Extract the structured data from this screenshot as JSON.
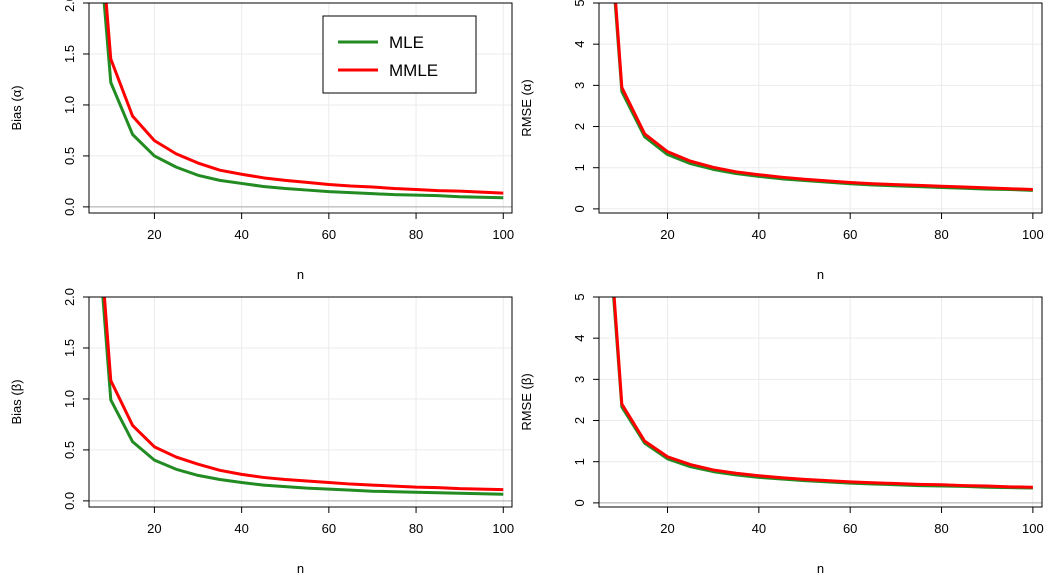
{
  "colors": {
    "MLE": "#228B22",
    "MMLE": "#FF0000",
    "grid": "#EBEBEB",
    "refline": "#AAAAAA",
    "frame": "#000000"
  },
  "legend": {
    "placement": "top-right",
    "entries": [
      "MLE",
      "MMLE"
    ]
  },
  "chart_data": [
    {
      "type": "line",
      "xlabel": "n",
      "ylabel": "Bias (α)",
      "xlim": [
        5,
        102
      ],
      "ylim": [
        -0.06,
        2.0
      ],
      "xticks": [
        20,
        40,
        60,
        80,
        100
      ],
      "yticks": [
        0.0,
        0.5,
        1.0,
        1.5,
        2.0
      ],
      "ytick_labels": [
        "0.0",
        "0.5",
        "1.0",
        "1.5",
        "2.0"
      ],
      "refline_y": 0,
      "grid": true,
      "legend": true,
      "x": [
        8,
        10,
        15,
        20,
        25,
        30,
        35,
        40,
        45,
        50,
        55,
        60,
        65,
        70,
        75,
        80,
        85,
        90,
        95,
        100
      ],
      "series": [
        {
          "name": "MLE",
          "values": [
            2.25,
            1.22,
            0.71,
            0.5,
            0.39,
            0.31,
            0.26,
            0.23,
            0.2,
            0.18,
            0.165,
            0.15,
            0.14,
            0.13,
            0.12,
            0.115,
            0.11,
            0.1,
            0.095,
            0.09
          ]
        },
        {
          "name": "MMLE",
          "values": [
            2.5,
            1.45,
            0.89,
            0.65,
            0.52,
            0.43,
            0.36,
            0.32,
            0.285,
            0.26,
            0.24,
            0.22,
            0.205,
            0.195,
            0.18,
            0.17,
            0.16,
            0.155,
            0.145,
            0.135
          ]
        }
      ]
    },
    {
      "type": "line",
      "xlabel": "n",
      "ylabel": "RMSE (α)",
      "xlim": [
        5,
        102
      ],
      "ylim": [
        -0.1,
        5.0
      ],
      "xticks": [
        20,
        40,
        60,
        80,
        100
      ],
      "yticks": [
        0,
        1,
        2,
        3,
        4,
        5
      ],
      "ytick_labels": [
        "0",
        "1",
        "2",
        "3",
        "4",
        "5"
      ],
      "refline_y": null,
      "grid": true,
      "legend": false,
      "x": [
        8,
        10,
        15,
        20,
        25,
        30,
        35,
        40,
        45,
        50,
        55,
        60,
        65,
        70,
        75,
        80,
        85,
        90,
        95,
        100
      ],
      "series": [
        {
          "name": "MLE",
          "values": [
            5.8,
            2.85,
            1.75,
            1.32,
            1.1,
            0.96,
            0.86,
            0.79,
            0.73,
            0.69,
            0.65,
            0.61,
            0.58,
            0.56,
            0.54,
            0.52,
            0.5,
            0.48,
            0.47,
            0.45
          ]
        },
        {
          "name": "MMLE",
          "values": [
            6.0,
            2.95,
            1.82,
            1.39,
            1.16,
            1.01,
            0.9,
            0.83,
            0.77,
            0.72,
            0.68,
            0.64,
            0.61,
            0.59,
            0.57,
            0.55,
            0.53,
            0.51,
            0.49,
            0.47
          ]
        }
      ]
    },
    {
      "type": "line",
      "xlabel": "n",
      "ylabel": "Bias (β)",
      "xlim": [
        5,
        102
      ],
      "ylim": [
        -0.06,
        2.0
      ],
      "xticks": [
        20,
        40,
        60,
        80,
        100
      ],
      "yticks": [
        0.0,
        0.5,
        1.0,
        1.5,
        2.0
      ],
      "ytick_labels": [
        "0.0",
        "0.5",
        "1.0",
        "1.5",
        "2.0"
      ],
      "refline_y": 0,
      "grid": true,
      "legend": false,
      "x": [
        8,
        10,
        15,
        20,
        25,
        30,
        35,
        40,
        45,
        50,
        55,
        60,
        65,
        70,
        75,
        80,
        85,
        90,
        95,
        100
      ],
      "series": [
        {
          "name": "MLE",
          "values": [
            2.1,
            0.99,
            0.58,
            0.4,
            0.31,
            0.25,
            0.21,
            0.18,
            0.155,
            0.14,
            0.125,
            0.115,
            0.105,
            0.095,
            0.09,
            0.085,
            0.08,
            0.075,
            0.07,
            0.065
          ]
        },
        {
          "name": "MMLE",
          "values": [
            2.3,
            1.18,
            0.74,
            0.53,
            0.43,
            0.36,
            0.3,
            0.26,
            0.23,
            0.21,
            0.195,
            0.18,
            0.165,
            0.155,
            0.145,
            0.135,
            0.13,
            0.12,
            0.115,
            0.11
          ]
        }
      ]
    },
    {
      "type": "line",
      "xlabel": "n",
      "ylabel": "RMSE (β)",
      "xlim": [
        5,
        102
      ],
      "ylim": [
        -0.1,
        5.0
      ],
      "xticks": [
        20,
        40,
        60,
        80,
        100
      ],
      "yticks": [
        0,
        1,
        2,
        3,
        4,
        5
      ],
      "ytick_labels": [
        "0",
        "1",
        "2",
        "3",
        "4",
        "5"
      ],
      "refline_y": 0,
      "grid": true,
      "legend": false,
      "x": [
        8,
        10,
        15,
        20,
        25,
        30,
        35,
        40,
        45,
        50,
        55,
        60,
        65,
        70,
        75,
        80,
        85,
        90,
        95,
        100
      ],
      "series": [
        {
          "name": "MLE",
          "values": [
            5.3,
            2.33,
            1.45,
            1.07,
            0.88,
            0.76,
            0.68,
            0.62,
            0.58,
            0.54,
            0.51,
            0.48,
            0.46,
            0.44,
            0.42,
            0.41,
            0.4,
            0.38,
            0.37,
            0.36
          ]
        },
        {
          "name": "MMLE",
          "values": [
            5.5,
            2.4,
            1.5,
            1.12,
            0.93,
            0.8,
            0.72,
            0.66,
            0.61,
            0.57,
            0.54,
            0.51,
            0.49,
            0.47,
            0.45,
            0.44,
            0.42,
            0.41,
            0.39,
            0.38
          ]
        }
      ]
    }
  ]
}
